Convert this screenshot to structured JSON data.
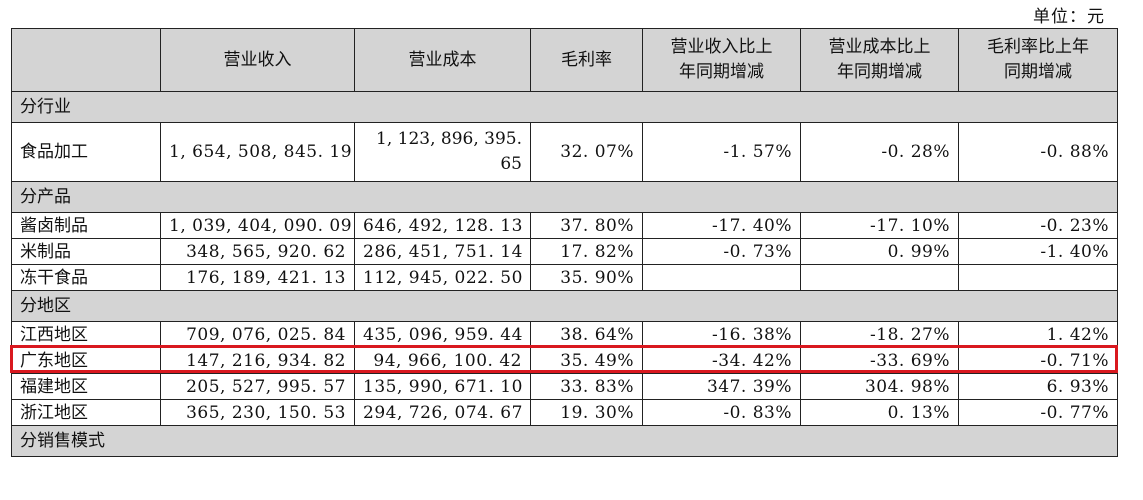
{
  "unit_label": "单位：元",
  "headers": [
    "",
    "营业收入",
    "营业成本",
    "毛利率",
    "营业收入比上\n年同期增减",
    "营业成本比上\n年同期增减",
    "毛利率比上年\n同期增减"
  ],
  "sections": [
    {
      "title": "分行业",
      "rows": [
        {
          "name": "食品加工",
          "revenue": "1, 654, 508, 845. 19",
          "cost_line1": "1, 123, 896, 395.",
          "cost_line2": "65",
          "margin": "32. 07%",
          "rev_change": "-1. 57%",
          "cost_change": "-0. 28%",
          "margin_change": "-0. 88%"
        }
      ]
    },
    {
      "title": "分产品",
      "rows": [
        {
          "name": "酱卤制品",
          "revenue": "1, 039, 404, 090. 09",
          "cost": "646, 492, 128. 13",
          "margin": "37. 80%",
          "rev_change": "-17. 40%",
          "cost_change": "-17. 10%",
          "margin_change": "-0. 23%"
        },
        {
          "name": "米制品",
          "revenue": "348, 565, 920. 62",
          "cost": "286, 451, 751. 14",
          "margin": "17. 82%",
          "rev_change": "-0. 73%",
          "cost_change": "0. 99%",
          "margin_change": "-1. 40%"
        },
        {
          "name": "冻干食品",
          "revenue": "176, 189, 421. 13",
          "cost": "112, 945, 022. 50",
          "margin": "35. 90%",
          "rev_change": "",
          "cost_change": "",
          "margin_change": ""
        }
      ]
    },
    {
      "title": "分地区",
      "rows": [
        {
          "name": "江西地区",
          "revenue": "709, 076, 025. 84",
          "cost": "435, 096, 959. 44",
          "margin": "38. 64%",
          "rev_change": "-16. 38%",
          "cost_change": "-18. 27%",
          "margin_change": "1. 42%"
        },
        {
          "name": "广东地区",
          "revenue": "147, 216, 934. 82",
          "cost": "94, 966, 100. 42",
          "margin": "35. 49%",
          "rev_change": "-34. 42%",
          "cost_change": "-33. 69%",
          "margin_change": "-0. 71%"
        },
        {
          "name": "福建地区",
          "revenue": "205, 527, 995. 57",
          "cost": "135, 990, 671. 10",
          "margin": "33. 83%",
          "rev_change": "347. 39%",
          "cost_change": "304. 98%",
          "margin_change": "6. 93%"
        },
        {
          "name": "浙江地区",
          "revenue": "365, 230, 150. 53",
          "cost": "294, 726, 074. 67",
          "margin": "19. 30%",
          "rev_change": "-0. 83%",
          "cost_change": "0. 13%",
          "margin_change": "-0. 77%"
        }
      ]
    },
    {
      "title": "分销售模式",
      "rows": []
    }
  ],
  "highlight_color": "#d9181f"
}
